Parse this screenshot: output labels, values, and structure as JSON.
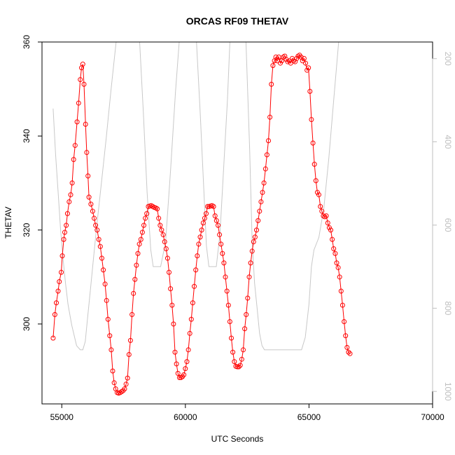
{
  "chart_data": {
    "type": "line",
    "title": "ORCAS RF09 THETAV",
    "xlabel": "UTC Seconds",
    "ylabel": "THETAV",
    "xlim": [
      54200,
      70000
    ],
    "ylim": [
      283,
      360
    ],
    "x_ticks": [
      55000,
      60000,
      65000,
      70000
    ],
    "y_ticks": [
      300,
      320,
      340,
      360
    ],
    "grid": false,
    "series": [
      {
        "role": "thetav",
        "color": "#ff0000",
        "style": "line with open circle markers",
        "axis": "left",
        "points": [
          [
            54650,
            297
          ],
          [
            54720,
            302
          ],
          [
            54780,
            304.5
          ],
          [
            54850,
            307
          ],
          [
            54900,
            309
          ],
          [
            54980,
            311
          ],
          [
            55020,
            314.5
          ],
          [
            55080,
            318
          ],
          [
            55120,
            319.5
          ],
          [
            55180,
            321
          ],
          [
            55230,
            323.5
          ],
          [
            55300,
            326
          ],
          [
            55360,
            327.5
          ],
          [
            55420,
            330
          ],
          [
            55480,
            335
          ],
          [
            55540,
            338
          ],
          [
            55620,
            343
          ],
          [
            55680,
            347
          ],
          [
            55750,
            352
          ],
          [
            55800,
            354.5
          ],
          [
            55850,
            355.3
          ],
          [
            55900,
            351
          ],
          [
            55960,
            342.5
          ],
          [
            56010,
            336.5
          ],
          [
            56060,
            331.5
          ],
          [
            56100,
            327
          ],
          [
            56180,
            325.5
          ],
          [
            56250,
            324
          ],
          [
            56310,
            322.5
          ],
          [
            56370,
            321
          ],
          [
            56430,
            320
          ],
          [
            56500,
            318
          ],
          [
            56560,
            316.5
          ],
          [
            56620,
            314
          ],
          [
            56680,
            311.5
          ],
          [
            56750,
            308.5
          ],
          [
            56810,
            305
          ],
          [
            56870,
            301
          ],
          [
            56940,
            297.5
          ],
          [
            57000,
            294.5
          ],
          [
            57060,
            290
          ],
          [
            57120,
            287.5
          ],
          [
            57180,
            286.2
          ],
          [
            57240,
            285.4
          ],
          [
            57300,
            285.3
          ],
          [
            57360,
            285.4
          ],
          [
            57420,
            285.6
          ],
          [
            57480,
            285.8
          ],
          [
            57540,
            286.2
          ],
          [
            57600,
            287.2
          ],
          [
            57660,
            288.5
          ],
          [
            57720,
            293.5
          ],
          [
            57780,
            296.5
          ],
          [
            57840,
            302
          ],
          [
            57900,
            306.5
          ],
          [
            57960,
            309.5
          ],
          [
            58020,
            312.5
          ],
          [
            58080,
            315
          ],
          [
            58140,
            317
          ],
          [
            58200,
            318
          ],
          [
            58260,
            319.5
          ],
          [
            58320,
            321
          ],
          [
            58380,
            322.5
          ],
          [
            58440,
            323.5
          ],
          [
            58500,
            325
          ],
          [
            58560,
            325.1
          ],
          [
            58620,
            325.2
          ],
          [
            58680,
            325
          ],
          [
            58740,
            324.8
          ],
          [
            58800,
            324.7
          ],
          [
            58860,
            324.5
          ],
          [
            58920,
            322.5
          ],
          [
            58980,
            321
          ],
          [
            59040,
            320
          ],
          [
            59100,
            319
          ],
          [
            59160,
            317.5
          ],
          [
            59220,
            316
          ],
          [
            59280,
            314
          ],
          [
            59340,
            311
          ],
          [
            59400,
            307.5
          ],
          [
            59460,
            304
          ],
          [
            59520,
            300
          ],
          [
            59580,
            294
          ],
          [
            59640,
            291.5
          ],
          [
            59700,
            289.5
          ],
          [
            59760,
            288.6
          ],
          [
            59820,
            288.6
          ],
          [
            59880,
            288.8
          ],
          [
            59940,
            289.2
          ],
          [
            60000,
            290.5
          ],
          [
            60060,
            292
          ],
          [
            60120,
            294.5
          ],
          [
            60180,
            298
          ],
          [
            60240,
            301
          ],
          [
            60300,
            304.5
          ],
          [
            60360,
            308
          ],
          [
            60420,
            311.5
          ],
          [
            60480,
            314.5
          ],
          [
            60540,
            317
          ],
          [
            60600,
            318.5
          ],
          [
            60660,
            320
          ],
          [
            60720,
            321.5
          ],
          [
            60780,
            322.5
          ],
          [
            60840,
            323.5
          ],
          [
            60900,
            325
          ],
          [
            60960,
            325
          ],
          [
            61020,
            325.1
          ],
          [
            61080,
            325.2
          ],
          [
            61140,
            325
          ],
          [
            61200,
            323
          ],
          [
            61260,
            322
          ],
          [
            61320,
            321
          ],
          [
            61380,
            319
          ],
          [
            61440,
            317
          ],
          [
            61500,
            315
          ],
          [
            61560,
            313
          ],
          [
            61620,
            310
          ],
          [
            61680,
            307
          ],
          [
            61740,
            304
          ],
          [
            61800,
            300.5
          ],
          [
            61860,
            297
          ],
          [
            61920,
            294
          ],
          [
            61980,
            292
          ],
          [
            62040,
            291
          ],
          [
            62100,
            290.9
          ],
          [
            62160,
            290.9
          ],
          [
            62220,
            291.2
          ],
          [
            62280,
            292.5
          ],
          [
            62340,
            294.5
          ],
          [
            62400,
            299
          ],
          [
            62460,
            302
          ],
          [
            62520,
            305.5
          ],
          [
            62580,
            310
          ],
          [
            62640,
            313
          ],
          [
            62700,
            315.5
          ],
          [
            62760,
            317.5
          ],
          [
            62820,
            318.5
          ],
          [
            62880,
            320
          ],
          [
            62940,
            322
          ],
          [
            63000,
            324
          ],
          [
            63060,
            326
          ],
          [
            63120,
            328
          ],
          [
            63180,
            330
          ],
          [
            63240,
            333
          ],
          [
            63300,
            336
          ],
          [
            63360,
            339
          ],
          [
            63420,
            344
          ],
          [
            63480,
            351
          ],
          [
            63540,
            355
          ],
          [
            63600,
            356
          ],
          [
            63660,
            356.8
          ],
          [
            63720,
            356
          ],
          [
            63780,
            356.8
          ],
          [
            63840,
            355.5
          ],
          [
            63900,
            356
          ],
          [
            63960,
            356.8
          ],
          [
            64020,
            357
          ],
          [
            64080,
            356.3
          ],
          [
            64140,
            355.8
          ],
          [
            64200,
            356
          ],
          [
            64260,
            355.5
          ],
          [
            64320,
            356.5
          ],
          [
            64380,
            356
          ],
          [
            64440,
            355.8
          ],
          [
            64500,
            356.5
          ],
          [
            64560,
            357
          ],
          [
            64620,
            357.2
          ],
          [
            64680,
            356.8
          ],
          [
            64740,
            356
          ],
          [
            64800,
            356.5
          ],
          [
            64860,
            355.5
          ],
          [
            64920,
            354
          ],
          [
            64980,
            354.5
          ],
          [
            65040,
            349.5
          ],
          [
            65100,
            343.5
          ],
          [
            65160,
            338.5
          ],
          [
            65220,
            334
          ],
          [
            65280,
            330.5
          ],
          [
            65340,
            328
          ],
          [
            65400,
            327.5
          ],
          [
            65460,
            325
          ],
          [
            65520,
            324
          ],
          [
            65580,
            323
          ],
          [
            65640,
            322.8
          ],
          [
            65700,
            323
          ],
          [
            65760,
            321.5
          ],
          [
            65820,
            320.5
          ],
          [
            65880,
            320
          ],
          [
            65940,
            318
          ],
          [
            66000,
            316
          ],
          [
            66060,
            315
          ],
          [
            66120,
            313
          ],
          [
            66180,
            312
          ],
          [
            66240,
            310
          ],
          [
            66300,
            307
          ],
          [
            66360,
            304
          ],
          [
            66420,
            300.5
          ],
          [
            66480,
            297.5
          ],
          [
            66540,
            295
          ],
          [
            66600,
            294
          ],
          [
            66660,
            293.7
          ]
        ]
      },
      {
        "role": "secondary gray trace",
        "color": "#c8c8c8",
        "style": "line",
        "axis": "right",
        "axis_ticks": [
          200,
          400,
          600,
          800,
          1000
        ],
        "axis_range_top_bottom": [
          160,
          1030
        ],
        "points": [
          [
            54650,
            320
          ],
          [
            54750,
            430
          ],
          [
            54850,
            520
          ],
          [
            54950,
            610
          ],
          [
            55050,
            680
          ],
          [
            55150,
            740
          ],
          [
            55250,
            790
          ],
          [
            55400,
            840
          ],
          [
            55600,
            890
          ],
          [
            55750,
            900
          ],
          [
            55850,
            900
          ],
          [
            55950,
            880
          ],
          [
            56050,
            820
          ],
          [
            56150,
            760
          ],
          [
            56250,
            700
          ],
          [
            56400,
            610
          ],
          [
            56600,
            500
          ],
          [
            56800,
            390
          ],
          [
            57000,
            270
          ],
          [
            57200,
            160
          ],
          [
            58150,
            160
          ],
          [
            58300,
            330
          ],
          [
            58450,
            520
          ],
          [
            58600,
            660
          ],
          [
            58700,
            700
          ],
          [
            59000,
            700
          ],
          [
            59200,
            640
          ],
          [
            59400,
            470
          ],
          [
            59600,
            280
          ],
          [
            59750,
            160
          ],
          [
            60450,
            160
          ],
          [
            60600,
            330
          ],
          [
            60750,
            520
          ],
          [
            60850,
            650
          ],
          [
            60950,
            700
          ],
          [
            61250,
            700
          ],
          [
            61400,
            620
          ],
          [
            61550,
            460
          ],
          [
            61700,
            300
          ],
          [
            61800,
            160
          ],
          [
            62450,
            160
          ],
          [
            62600,
            420
          ],
          [
            62700,
            640
          ],
          [
            62800,
            740
          ],
          [
            62900,
            800
          ],
          [
            63000,
            860
          ],
          [
            63100,
            890
          ],
          [
            63200,
            900
          ],
          [
            64700,
            900
          ],
          [
            64850,
            870
          ],
          [
            65000,
            790
          ],
          [
            65100,
            700
          ],
          [
            65200,
            660
          ],
          [
            65400,
            630
          ],
          [
            65600,
            560
          ],
          [
            65800,
            440
          ],
          [
            66000,
            300
          ],
          [
            66200,
            160
          ]
        ]
      }
    ]
  }
}
